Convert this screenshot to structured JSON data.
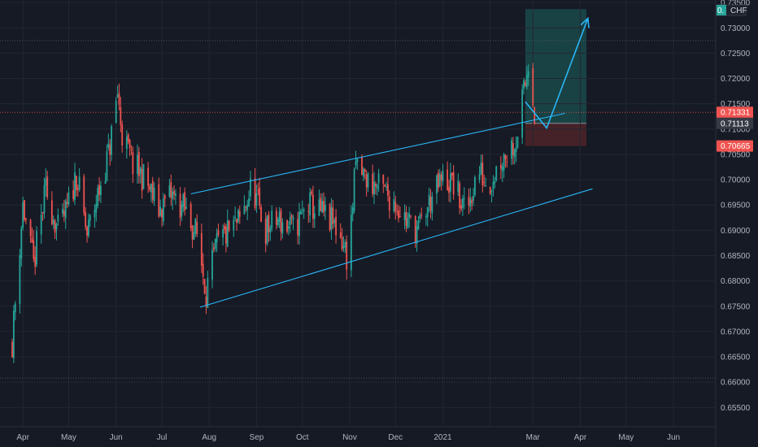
{
  "currency_label": "CHF",
  "currency_badge": "0.",
  "colors": {
    "background": "#161a25",
    "grid": "#232632",
    "up": "#26a69a",
    "down": "#ef5350",
    "trendline": "#29b6f6",
    "profit_zone": "#1a4a4a",
    "loss_zone": "#4a2328",
    "price_tag_current": "#ef5350",
    "price_tag_entry": "#363a45",
    "price_tag_stop": "#ef5350"
  },
  "chart_data": {
    "type": "candlestick",
    "ylim": [
      0.6512,
      0.7355
    ],
    "y_ticks": [
      "0.73500",
      "0.73000",
      "0.72500",
      "0.72000",
      "0.71500",
      "0.71000",
      "0.70500",
      "0.70000",
      "0.69500",
      "0.69000",
      "0.68500",
      "0.68000",
      "0.67500",
      "0.67000",
      "0.66500",
      "0.66000",
      "0.65500"
    ],
    "x_ticks": [
      "Apr",
      "May",
      "Jun",
      "Jul",
      "Aug",
      "Sep",
      "Oct",
      "Nov",
      "Dec",
      "2021",
      "Mar",
      "Apr",
      "May",
      "Jun"
    ],
    "price_tags": [
      {
        "label": "0.71331",
        "value": 0.71331,
        "role": "current"
      },
      {
        "label": "0.71113",
        "value": 0.71113,
        "role": "entry"
      },
      {
        "label": "0.70665",
        "value": 0.70665,
        "role": "stop"
      }
    ],
    "horizontal_lines": [
      {
        "value": 0.7275,
        "style": "dotted"
      },
      {
        "value": 0.71331,
        "style": "dotted-red"
      },
      {
        "value": 0.6608,
        "style": "dotted"
      }
    ],
    "channel": {
      "upper": [
        {
          "x": "2020-07-20",
          "y": 0.6972
        },
        {
          "x": "2021-03-22",
          "y": 0.7131
        }
      ],
      "lower": [
        {
          "x": "2020-07-26",
          "y": 0.6748
        },
        {
          "x": "2021-04-09",
          "y": 0.6982
        }
      ]
    },
    "projection": [
      {
        "x": "2021-02-24",
        "y": 0.7154
      },
      {
        "x": "2021-03-10",
        "y": 0.7102
      },
      {
        "x": "2021-04-06",
        "y": 0.7319
      }
    ],
    "position": {
      "start": "2021-02-24",
      "end": "2021-04-05",
      "entry": 0.71113,
      "target": 0.7337,
      "stop": 0.70665
    },
    "anchors": [
      [
        "2020-03-25",
        0.668
      ],
      [
        "2020-04-01",
        0.695
      ],
      [
        "2020-04-08",
        0.683
      ],
      [
        "2020-04-16",
        0.698
      ],
      [
        "2020-04-24",
        0.69
      ],
      [
        "2020-04-30",
        0.694
      ],
      [
        "2020-05-06",
        0.701
      ],
      [
        "2020-05-13",
        0.689
      ],
      [
        "2020-05-20",
        0.697
      ],
      [
        "2020-05-27",
        0.705
      ],
      [
        "2020-06-02",
        0.717
      ],
      [
        "2020-06-05",
        0.709
      ],
      [
        "2020-06-12",
        0.703
      ],
      [
        "2020-06-20",
        0.7
      ],
      [
        "2020-06-29",
        0.694
      ],
      [
        "2020-07-07",
        0.697
      ],
      [
        "2020-07-16",
        0.694
      ],
      [
        "2020-07-24",
        0.689
      ],
      [
        "2020-07-30",
        0.678
      ],
      [
        "2020-08-06",
        0.687
      ],
      [
        "2020-08-15",
        0.69
      ],
      [
        "2020-08-22",
        0.692
      ],
      [
        "2020-08-29",
        0.699
      ],
      [
        "2020-09-07",
        0.69
      ],
      [
        "2020-09-15",
        0.692
      ],
      [
        "2020-09-25",
        0.69
      ],
      [
        "2020-10-05",
        0.695
      ],
      [
        "2020-10-15",
        0.693
      ],
      [
        "2020-10-25",
        0.69
      ],
      [
        "2020-10-31",
        0.684
      ],
      [
        "2020-11-05",
        0.703
      ],
      [
        "2020-11-12",
        0.7
      ],
      [
        "2020-11-22",
        0.698
      ],
      [
        "2020-11-30",
        0.696
      ],
      [
        "2020-12-08",
        0.692
      ],
      [
        "2020-12-16",
        0.69
      ],
      [
        "2020-12-24",
        0.696
      ],
      [
        "2021-01-01",
        0.7
      ],
      [
        "2021-01-08",
        0.699
      ],
      [
        "2021-01-16",
        0.693
      ],
      [
        "2021-01-24",
        0.702
      ],
      [
        "2021-01-31",
        0.699
      ],
      [
        "2021-02-08",
        0.704
      ],
      [
        "2021-02-18",
        0.708
      ],
      [
        "2021-02-24",
        0.719
      ],
      [
        "2021-02-27",
        0.726
      ],
      [
        "2021-03-02",
        0.713
      ]
    ]
  }
}
